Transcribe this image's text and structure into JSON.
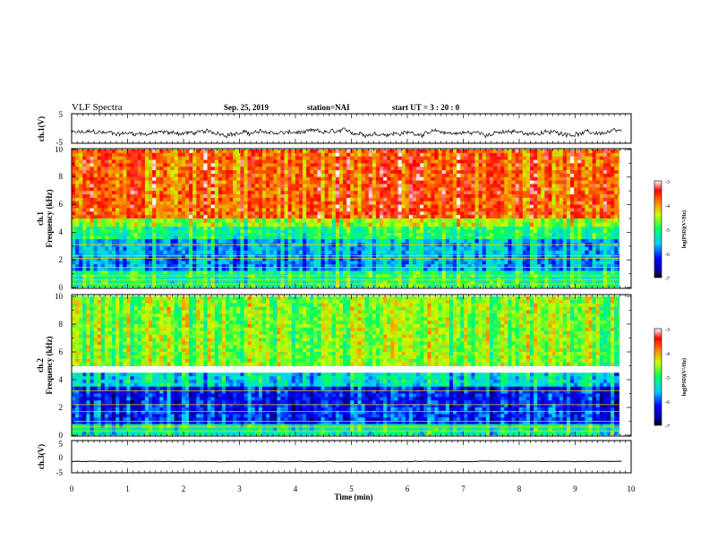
{
  "header": {
    "title": "VLF Spectra",
    "date": "Sep. 25, 2019",
    "station": "station=NAI",
    "start_ut": "start UT =  3 : 20 : 0"
  },
  "chart_data": [
    {
      "type": "line",
      "name": "ch1-waveform",
      "ylabel": "ch.1(V)",
      "ylim": [
        -5,
        5
      ],
      "yticks": [
        "5",
        "-5"
      ],
      "xlim": [
        0,
        10
      ],
      "duration_min": 9.83,
      "baseline_v": -1.5,
      "noise_v": 1.2,
      "color": "#000000"
    },
    {
      "type": "heatmap",
      "name": "ch1-spectrogram",
      "ylabel": "ch.1\nFrequency (kHz)",
      "ylim": [
        0,
        10
      ],
      "yticks": [
        "0",
        "2",
        "4",
        "6",
        "8",
        "10"
      ],
      "xlim": [
        0,
        10
      ],
      "duration_min": 9.83,
      "colorbar": {
        "label": "log(PSD)(V²/Hz)",
        "range": [
          -7,
          -3
        ],
        "ticks": [
          "-3",
          "-4",
          "-5",
          "-6",
          "-7"
        ]
      },
      "bands_khz": [
        {
          "from": 5.0,
          "to": 10.0,
          "level": -3.7
        },
        {
          "from": 4.4,
          "to": 5.0,
          "level": -4.5
        },
        {
          "from": 3.5,
          "to": 4.4,
          "level": -5.0
        },
        {
          "from": 2.4,
          "to": 3.5,
          "level": -5.6
        },
        {
          "from": 1.2,
          "to": 2.4,
          "level": -5.7
        },
        {
          "from": 0.0,
          "to": 1.2,
          "level": -5.0
        }
      ],
      "lines_khz": [
        0.25,
        0.55,
        0.85,
        1.45,
        2.1,
        2.3,
        3.1
      ]
    },
    {
      "type": "heatmap",
      "name": "ch2-spectrogram",
      "ylabel": "ch.2\nFrequency (kHz)",
      "ylim": [
        0,
        10
      ],
      "yticks": [
        "0",
        "2",
        "4",
        "6",
        "8",
        "10"
      ],
      "xlim": [
        0,
        10
      ],
      "duration_min": 9.83,
      "colorbar": {
        "label": "log(PSD)(V²/Hz)",
        "range": [
          -7,
          -3
        ],
        "ticks": [
          "-3",
          "-4",
          "-5",
          "-6",
          "-7"
        ]
      },
      "bands_khz": [
        {
          "from": 5.0,
          "to": 10.0,
          "level": -4.6
        },
        {
          "from": 3.5,
          "to": 4.5,
          "level": -5.4
        },
        {
          "from": 2.0,
          "to": 3.5,
          "level": -6.2
        },
        {
          "from": 0.8,
          "to": 2.0,
          "level": -6.1
        },
        {
          "from": 0.0,
          "to": 0.8,
          "level": -5.2
        }
      ],
      "lines_khz": [
        0.3,
        0.6,
        1.0,
        1.7,
        2.2,
        3.2
      ]
    },
    {
      "type": "line",
      "name": "ch3-waveform",
      "ylabel": "ch.3(V)",
      "ylim": [
        -5,
        5
      ],
      "yticks": [
        "5",
        "0",
        "-5"
      ],
      "xlim": [
        0,
        10
      ],
      "duration_min": 9.83,
      "baseline_v": -1.5,
      "noise_v": 0.12,
      "color": "#000000"
    }
  ],
  "xaxis": {
    "label": "Time (min)",
    "ticks": [
      "0",
      "1",
      "2",
      "3",
      "4",
      "5",
      "6",
      "7",
      "8",
      "9",
      "10"
    ]
  }
}
